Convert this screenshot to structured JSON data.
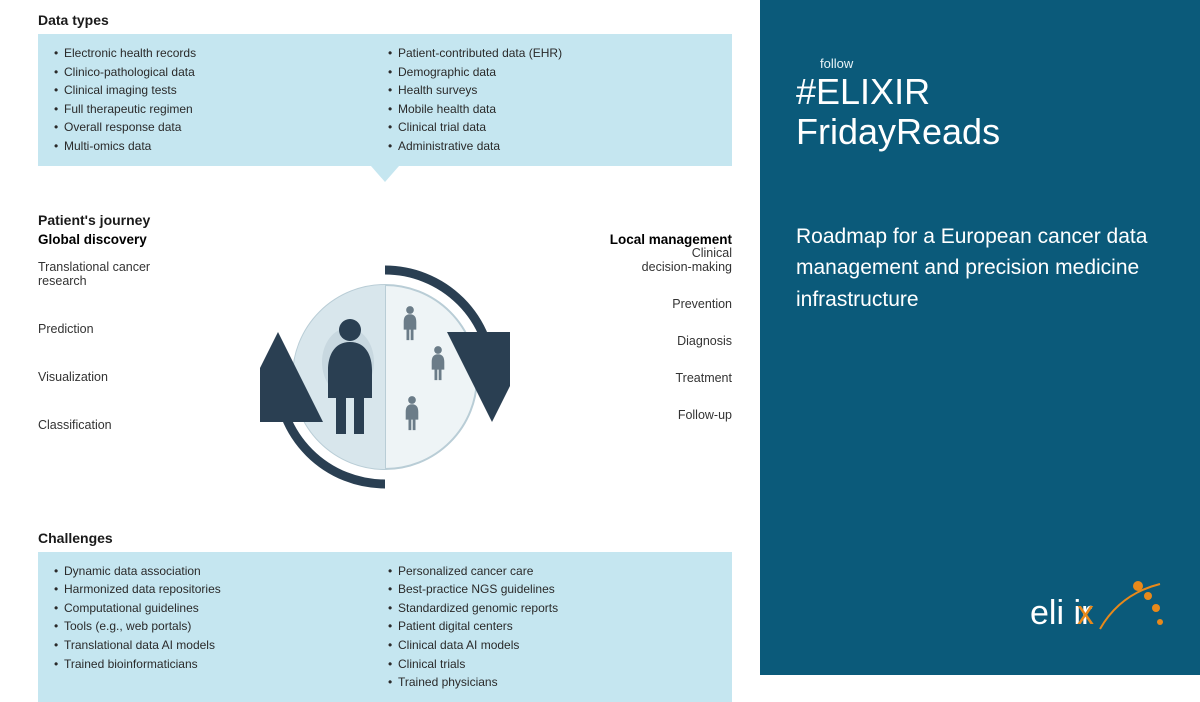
{
  "colors": {
    "panel": "#0b5a7a",
    "box": "#c5e6f0",
    "arrow": "#2a3f52",
    "accent": "#e8891a"
  },
  "left": {
    "dataTypes": {
      "title": "Data types",
      "col1": [
        "Electronic health records",
        "Clinico-pathological data",
        "Clinical imaging tests",
        "Full therapeutic regimen",
        "Overall response data",
        "Multi-omics data"
      ],
      "col2": [
        "Patient-contributed data (EHR)",
        "Demographic data",
        "Health surveys",
        "Mobile health data",
        "Clinical trial data",
        "Administrative data"
      ]
    },
    "journey": {
      "title": "Patient's journey",
      "leftHead": "Global discovery",
      "rightHead": "Local management",
      "leftLabels": [
        "Translational cancer\nresearch",
        "Prediction",
        "Visualization",
        "Classification"
      ],
      "rightLabels": [
        "Clinical\ndecision-making",
        "Prevention",
        "Diagnosis",
        "Treatment",
        "Follow-up"
      ]
    },
    "challenges": {
      "title": "Challenges",
      "col1": [
        "Dynamic data association",
        "Harmonized data repositories",
        "Computational guidelines",
        "Tools (e.g., web portals)",
        "Translational data AI models",
        "Trained bioinformaticians"
      ],
      "col2": [
        "Personalized cancer care",
        "Best-practice NGS guidelines",
        "Standardized genomic reports",
        "Patient digital centers",
        "Clinical data AI models",
        "Clinical trials",
        "Trained physicians"
      ]
    }
  },
  "right": {
    "follow": "follow",
    "hashtag1": "#ELIXIR",
    "hashtag2": "FridayReads",
    "tagline": "Roadmap for a European cancer data management and precision medicine infrastructure",
    "logoText": "elixir"
  }
}
